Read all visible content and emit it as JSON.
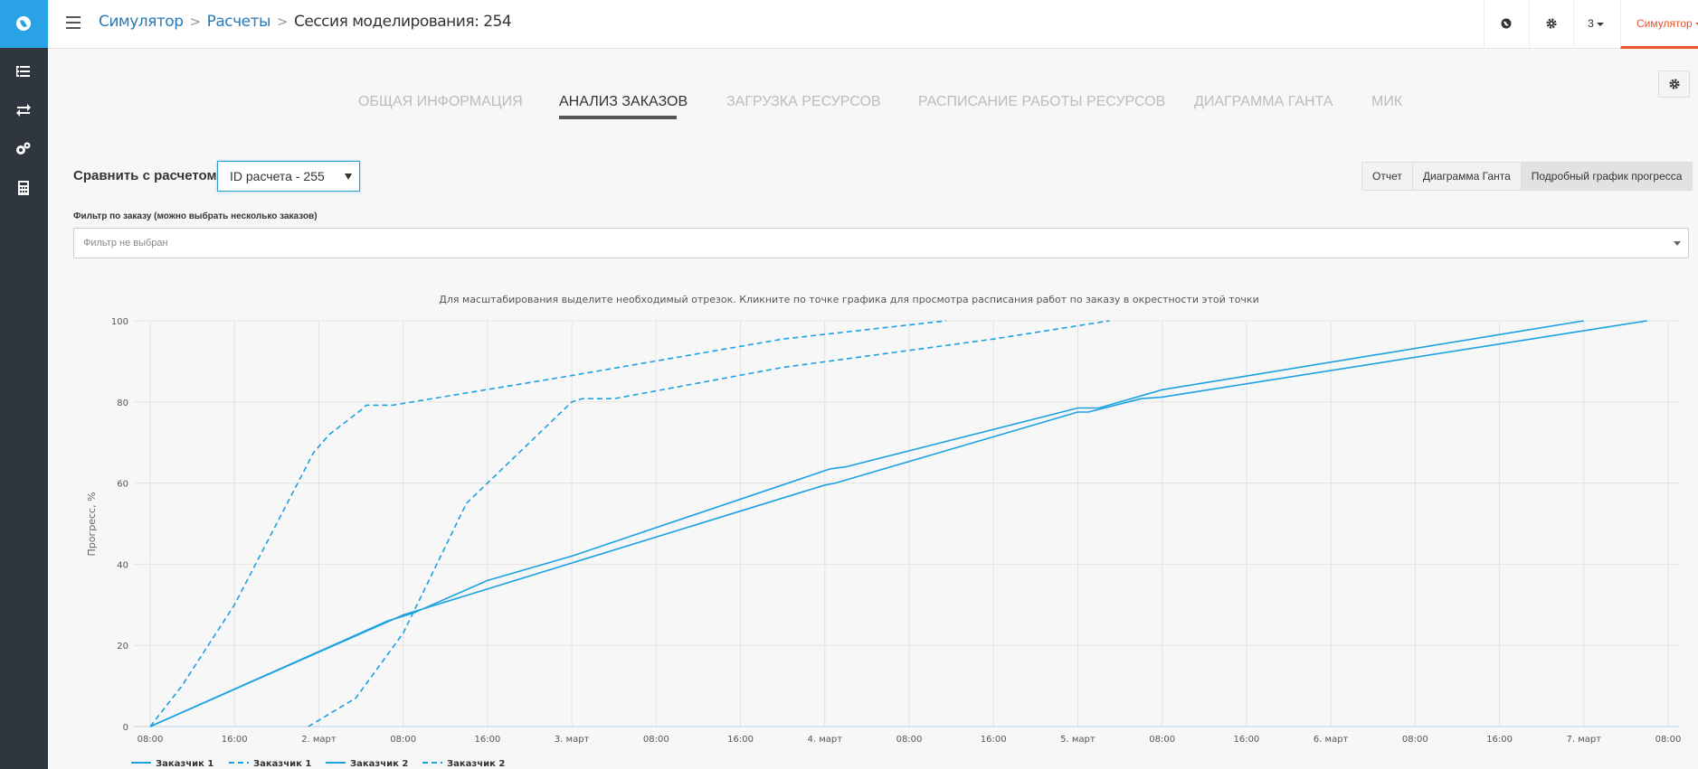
{
  "topbar": {
    "breadcrumbs": [
      {
        "label": "Симулятор"
      },
      {
        "label": "Расчеты"
      },
      {
        "label": "Сессия моделирования: 254"
      }
    ],
    "number_menu": "3",
    "user_menu": "Симулятор"
  },
  "sidebar": {
    "items": [
      {
        "icon": "list-icon"
      },
      {
        "icon": "exchange-icon"
      },
      {
        "icon": "cogs-icon"
      },
      {
        "icon": "calculator-icon"
      }
    ]
  },
  "tabs": [
    {
      "label": "ОБЩАЯ ИНФОРМАЦИЯ",
      "active": false
    },
    {
      "label": "АНАЛИЗ ЗАКАЗОВ",
      "active": true
    },
    {
      "label": "ЗАГРУЗКА РЕСУРСОВ",
      "active": false
    },
    {
      "label": "РАСПИСАНИЕ РАБОТЫ РЕСУРСОВ",
      "active": false
    },
    {
      "label": "ДИАГРАММА ГАНТА",
      "active": false
    },
    {
      "label": "МИК",
      "active": false
    }
  ],
  "compare": {
    "label": "Сравнить с расчетом:",
    "selected": "ID расчета - 255"
  },
  "view_buttons": [
    "Отчет",
    "Диаграмма Ганта",
    "Подробный график прогресса"
  ],
  "filter": {
    "label": "Фильтр по заказу (можно выбрать несколько заказов)",
    "placeholder": "Фильтр не выбран"
  },
  "chart_hint": "Для масштабирования выделите необходимый отрезок. Кликните по точке графика для просмотра расписания работ по заказу в окрестности этой точки",
  "colors": {
    "accent": "#2aa3e6",
    "series": "#1ba1e2",
    "user": "#e8542c"
  },
  "chart_data": {
    "type": "line",
    "ylabel": "Прогресс, %",
    "ylim": [
      0,
      100
    ],
    "xlim": [
      0,
      144
    ],
    "x_unit": "hours since first tick",
    "yticks": [
      0,
      20,
      40,
      60,
      80,
      100
    ],
    "xticks": [
      {
        "x": 0,
        "label": "08:00"
      },
      {
        "x": 8,
        "label": "16:00"
      },
      {
        "x": 16,
        "label": "2. март"
      },
      {
        "x": 24,
        "label": "08:00"
      },
      {
        "x": 32,
        "label": "16:00"
      },
      {
        "x": 40,
        "label": "3. март"
      },
      {
        "x": 48,
        "label": "08:00"
      },
      {
        "x": 56,
        "label": "16:00"
      },
      {
        "x": 64,
        "label": "4. март"
      },
      {
        "x": 72,
        "label": "08:00"
      },
      {
        "x": 80,
        "label": "16:00"
      },
      {
        "x": 88,
        "label": "5. март"
      },
      {
        "x": 96,
        "label": "08:00"
      },
      {
        "x": 104,
        "label": "16:00"
      },
      {
        "x": 112,
        "label": "6. март"
      },
      {
        "x": 120,
        "label": "08:00"
      },
      {
        "x": 128,
        "label": "16:00"
      },
      {
        "x": 136,
        "label": "7. март"
      },
      {
        "x": 144,
        "label": "08:00"
      }
    ],
    "grid": true,
    "legend_position": "bottom-left",
    "series": [
      {
        "name": "Заказчик 1",
        "dash": false,
        "points": [
          [
            0,
            0
          ],
          [
            22.5,
            26
          ],
          [
            25,
            28
          ],
          [
            32,
            36
          ],
          [
            40,
            42
          ],
          [
            64.5,
            63.5
          ],
          [
            66,
            64
          ],
          [
            88,
            78.5
          ],
          [
            90,
            78.5
          ],
          [
            96,
            83
          ],
          [
            136,
            100
          ]
        ]
      },
      {
        "name": "Заказчик 1",
        "dash": true,
        "points": [
          [
            0,
            0
          ],
          [
            3,
            10
          ],
          [
            8,
            30
          ],
          [
            15.5,
            67.5
          ],
          [
            17,
            72
          ],
          [
            20,
            78
          ],
          [
            20.5,
            79.2
          ],
          [
            23,
            79.2
          ],
          [
            40,
            86.5
          ],
          [
            60,
            95.5
          ],
          [
            75.5,
            100
          ]
        ]
      },
      {
        "name": "Заказчик 2",
        "dash": false,
        "points": [
          [
            0,
            0
          ],
          [
            24,
            27.5
          ],
          [
            64,
            59.5
          ],
          [
            65,
            60
          ],
          [
            88,
            77.5
          ],
          [
            89,
            77.5
          ],
          [
            94,
            80.8
          ],
          [
            96,
            81.2
          ],
          [
            142,
            100
          ]
        ]
      },
      {
        "name": "Заказчик 2",
        "dash": true,
        "points": [
          [
            15,
            0
          ],
          [
            19.5,
            7
          ],
          [
            24,
            23
          ],
          [
            30,
            55
          ],
          [
            40,
            80
          ],
          [
            41,
            80.8
          ],
          [
            44,
            80.8
          ],
          [
            60,
            88.5
          ],
          [
            80,
            95.5
          ],
          [
            91,
            100
          ]
        ]
      }
    ]
  }
}
